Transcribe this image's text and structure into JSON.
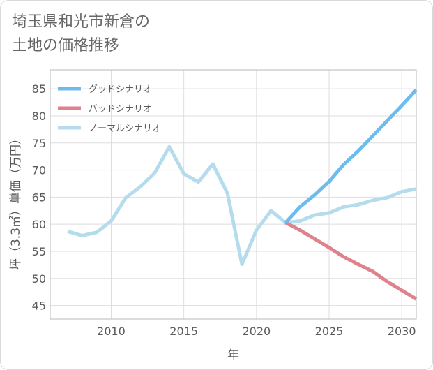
{
  "title_line1": "埼玉県和光市新倉の",
  "title_line2": "土地の価格推移",
  "chart_data": {
    "type": "line",
    "xlabel": "年",
    "ylabel": "坪（3.3㎡）単価（万円）",
    "xlim": [
      2005.8,
      2031
    ],
    "ylim": [
      42.5,
      88.5
    ],
    "x_ticks": [
      2010,
      2015,
      2020,
      2025,
      2030
    ],
    "y_ticks": [
      45,
      50,
      55,
      60,
      65,
      70,
      75,
      80,
      85
    ],
    "grid": true,
    "legend_position": "top-left",
    "series": [
      {
        "name": "グッドシナリオ",
        "color": "#6cbcef",
        "x": [
          2022,
          2023,
          2024,
          2025,
          2026,
          2027,
          2028,
          2029,
          2030,
          2031
        ],
        "values": [
          60.3,
          63.2,
          65.4,
          67.9,
          71.0,
          73.5,
          76.3,
          79.1,
          81.9,
          84.8
        ]
      },
      {
        "name": "バッドシナリオ",
        "color": "#e0828c",
        "x": [
          2022,
          2023,
          2024,
          2025,
          2026,
          2027,
          2028,
          2029,
          2030,
          2031
        ],
        "values": [
          60.3,
          58.9,
          57.3,
          55.7,
          54.0,
          52.6,
          51.3,
          49.4,
          47.8,
          46.2
        ]
      },
      {
        "name": "ノーマルシナリオ",
        "color": "#b5dcec",
        "x": [
          2007,
          2008,
          2009,
          2010,
          2011,
          2012,
          2013,
          2014,
          2015,
          2016,
          2017,
          2018,
          2019,
          2020,
          2021,
          2022,
          2023,
          2024,
          2025,
          2026,
          2027,
          2028,
          2029,
          2030,
          2031
        ],
        "values": [
          58.7,
          57.9,
          58.5,
          60.6,
          64.9,
          66.9,
          69.5,
          74.3,
          69.3,
          67.8,
          71.1,
          65.7,
          52.6,
          58.9,
          62.5,
          60.3,
          60.6,
          61.7,
          62.1,
          63.2,
          63.6,
          64.4,
          64.9,
          66.0,
          66.5
        ]
      }
    ]
  }
}
